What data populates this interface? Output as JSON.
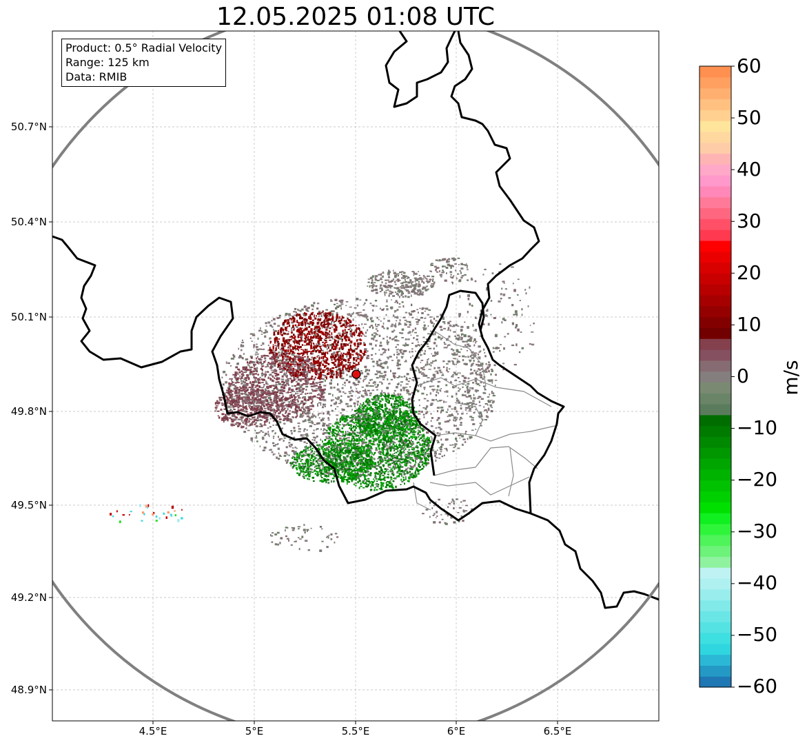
{
  "title": "12.05.2025 01:08 UTC",
  "info": {
    "product": "Product: 0.5° Radial Velocity",
    "range": "Range: 125 km",
    "data": "Data: RMIB"
  },
  "lat_labels": [
    "50.7°N",
    "50.4°N",
    "50.1°N",
    "49.8°N",
    "49.5°N",
    "49.2°N",
    "48.9°N"
  ],
  "lon_labels": [
    "4.5°E",
    "5°E",
    "5.5°E",
    "6°E",
    "6.5°E"
  ],
  "colorbar": {
    "ticks": [
      "60",
      "50",
      "40",
      "30",
      "20",
      "10",
      "0",
      "−10",
      "−20",
      "−30",
      "−40",
      "−50",
      "−60"
    ],
    "unit": "m/s",
    "min": -60,
    "max": 60,
    "colors": [
      "#1f77b4",
      "#2499c6",
      "#2bb8d6",
      "#2fd6df",
      "#3edfe0",
      "#55e2e2",
      "#6be6e6",
      "#82e9e9",
      "#99eded",
      "#aff0f0",
      "#bff3f3",
      "#8ff29f",
      "#6df27a",
      "#4ff45a",
      "#2ef53a",
      "#10f020",
      "#00e000",
      "#00d000",
      "#00c200",
      "#00b300",
      "#00a500",
      "#009700",
      "#008900",
      "#007b00",
      "#006d00",
      "#5a7c5c",
      "#6a8468",
      "#7a8a72",
      "#857e7e",
      "#866c72",
      "#855060",
      "#84404c",
      "#720000",
      "#830000",
      "#950000",
      "#a60000",
      "#b80000",
      "#c80000",
      "#d90000",
      "#eb0000",
      "#ff0000",
      "#ff3a50",
      "#ff5068",
      "#ff6680",
      "#ff7a98",
      "#ff88b8",
      "#ff99cc",
      "#ffa8c8",
      "#ffb4b4",
      "#ffcca8",
      "#ffd8a0",
      "#ffe49c",
      "#ffd090",
      "#ffc080",
      "#ffb070",
      "#ffa060",
      "#ff9050"
    ]
  },
  "radar": {
    "lat": 49.91,
    "lon": 5.5,
    "range_km": 125
  }
}
